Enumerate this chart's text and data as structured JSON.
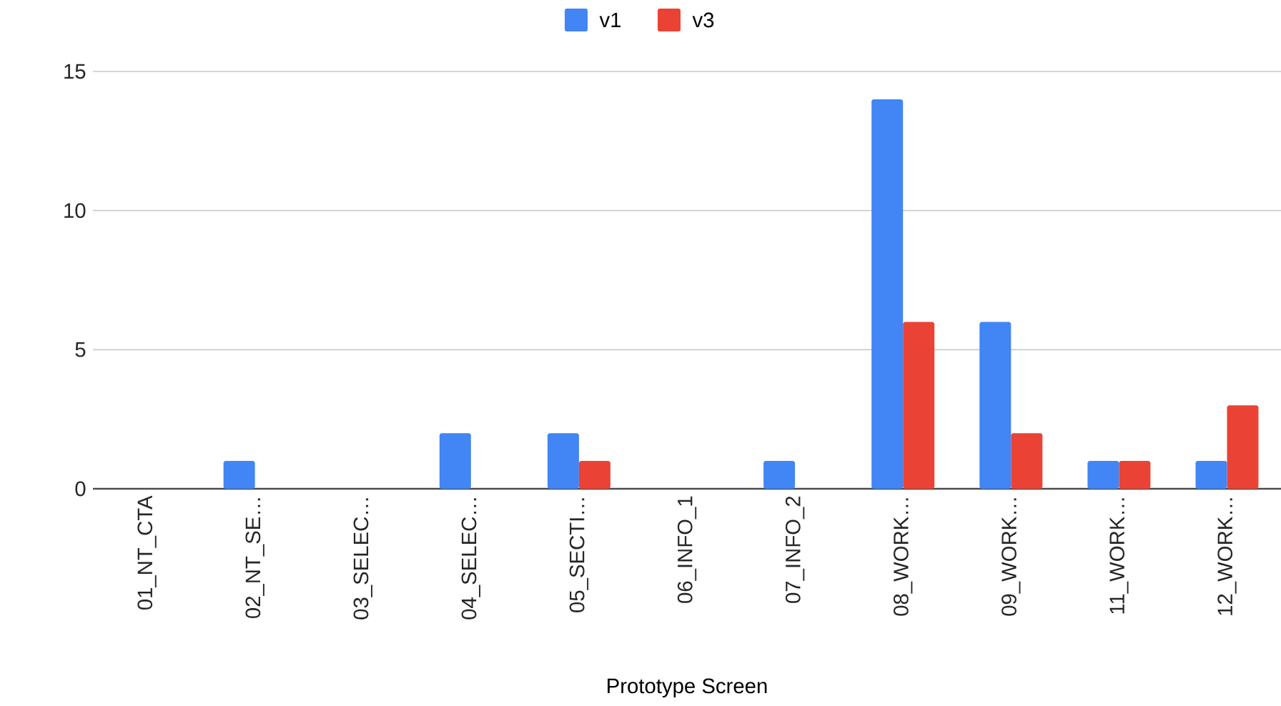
{
  "chart_data": {
    "type": "bar",
    "xlabel": "Prototype Screen",
    "categories": [
      "01_NT_CTA",
      "02_NT_SE…",
      "03_SELEC…",
      "04_SELEC…",
      "05_SECTI…",
      "06_INFO_1",
      "07_INFO_2",
      "08_WORK…",
      "09_WORK…",
      "11_WORK…",
      "12_WORK…"
    ],
    "series": [
      {
        "name": "v1",
        "color": "#4285f4",
        "values": [
          0,
          1,
          0,
          2,
          2,
          0,
          1,
          14,
          6,
          1,
          1
        ]
      },
      {
        "name": "v3",
        "color": "#ea4335",
        "values": [
          0,
          0,
          0,
          0,
          1,
          0,
          0,
          6,
          2,
          1,
          3
        ]
      }
    ],
    "ylim": [
      0,
      15
    ],
    "yticks": [
      0,
      5,
      10,
      15
    ],
    "grid": "y",
    "legend": "top"
  }
}
